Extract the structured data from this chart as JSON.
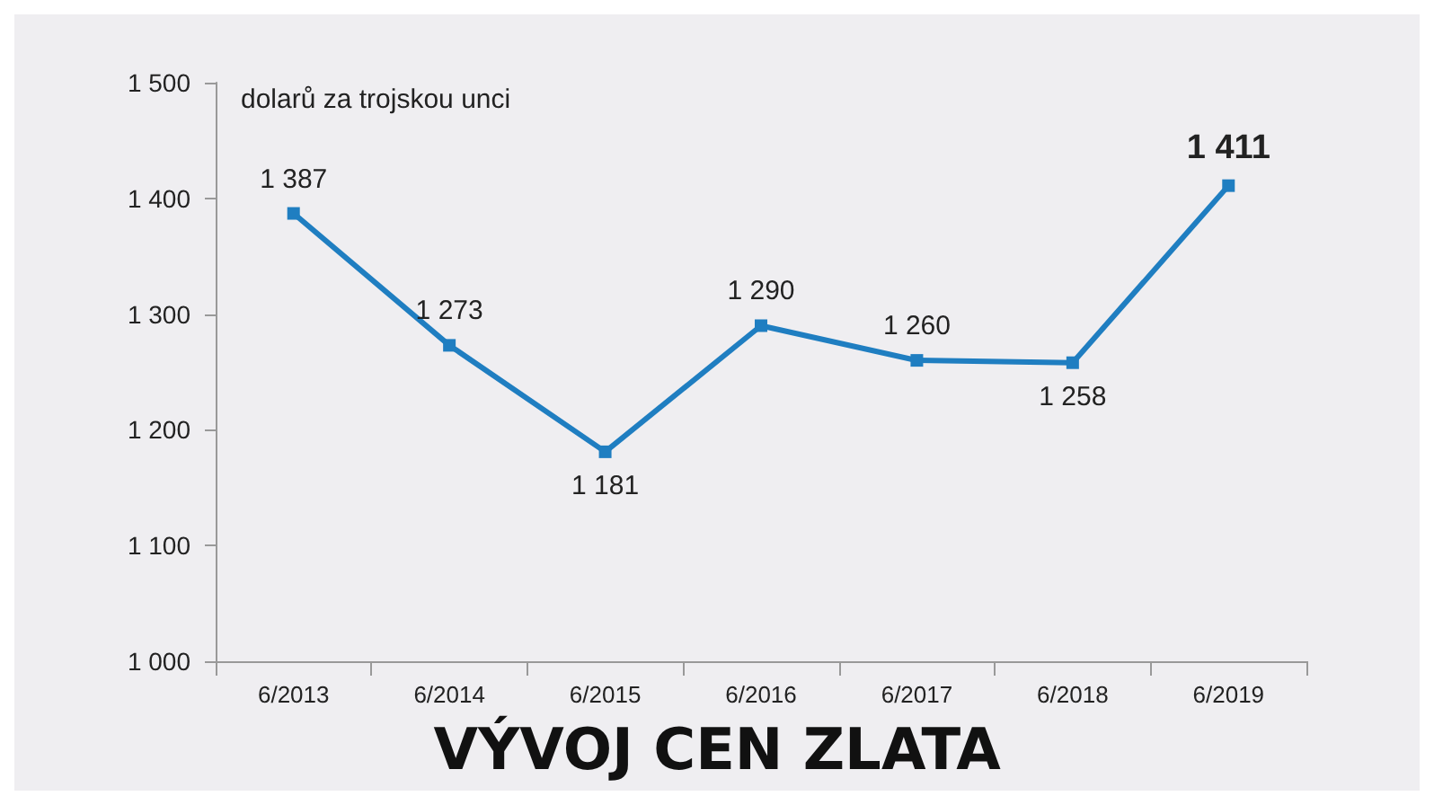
{
  "chart_data": {
    "type": "line",
    "title": "VÝVOJ CEN ZLATA",
    "ylabel": "dolarů za trojskou unci",
    "categories": [
      "6/2013",
      "6/2014",
      "6/2015",
      "6/2016",
      "6/2017",
      "6/2018",
      "6/2019"
    ],
    "series": [
      {
        "color": "#1f7ec1",
        "values": [
          1387,
          1273,
          1181,
          1290,
          1260,
          1258,
          1411
        ],
        "value_labels": [
          "1 387",
          "1 273",
          "1 181",
          "1 290",
          "1 260",
          "1 258",
          "1 411"
        ]
      }
    ],
    "ylim": [
      1000,
      1500
    ],
    "yticks": [
      {
        "value": 1000,
        "label": "1 000"
      },
      {
        "value": 1100,
        "label": "1 100"
      },
      {
        "value": 1200,
        "label": "1 200"
      },
      {
        "value": 1300,
        "label": "1 300"
      },
      {
        "value": 1400,
        "label": "1 400"
      },
      {
        "value": 1500,
        "label": "1 500"
      }
    ],
    "grid": false,
    "marker": "square",
    "line_style": "solid"
  }
}
